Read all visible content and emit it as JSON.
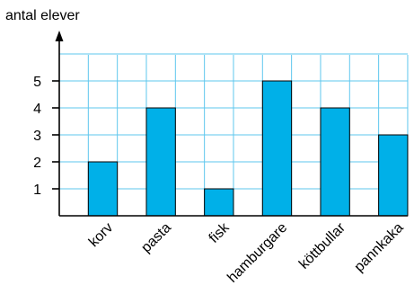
{
  "chart_data": {
    "type": "bar",
    "ylabel": "antal elever",
    "xlabel": "",
    "categories": [
      "korv",
      "pasta",
      "fisk",
      "hamburgare",
      "köttbullar",
      "pannkaka"
    ],
    "values": [
      2,
      4,
      1,
      5,
      4,
      3
    ],
    "yticks": [
      "1",
      "2",
      "3",
      "4",
      "5"
    ],
    "ylim": [
      0,
      6
    ],
    "grid": true,
    "colors": {
      "bar": "#00b0e8",
      "grid": "#5ec7ee",
      "axis": "#000000",
      "bar_stroke": "#000000"
    }
  }
}
